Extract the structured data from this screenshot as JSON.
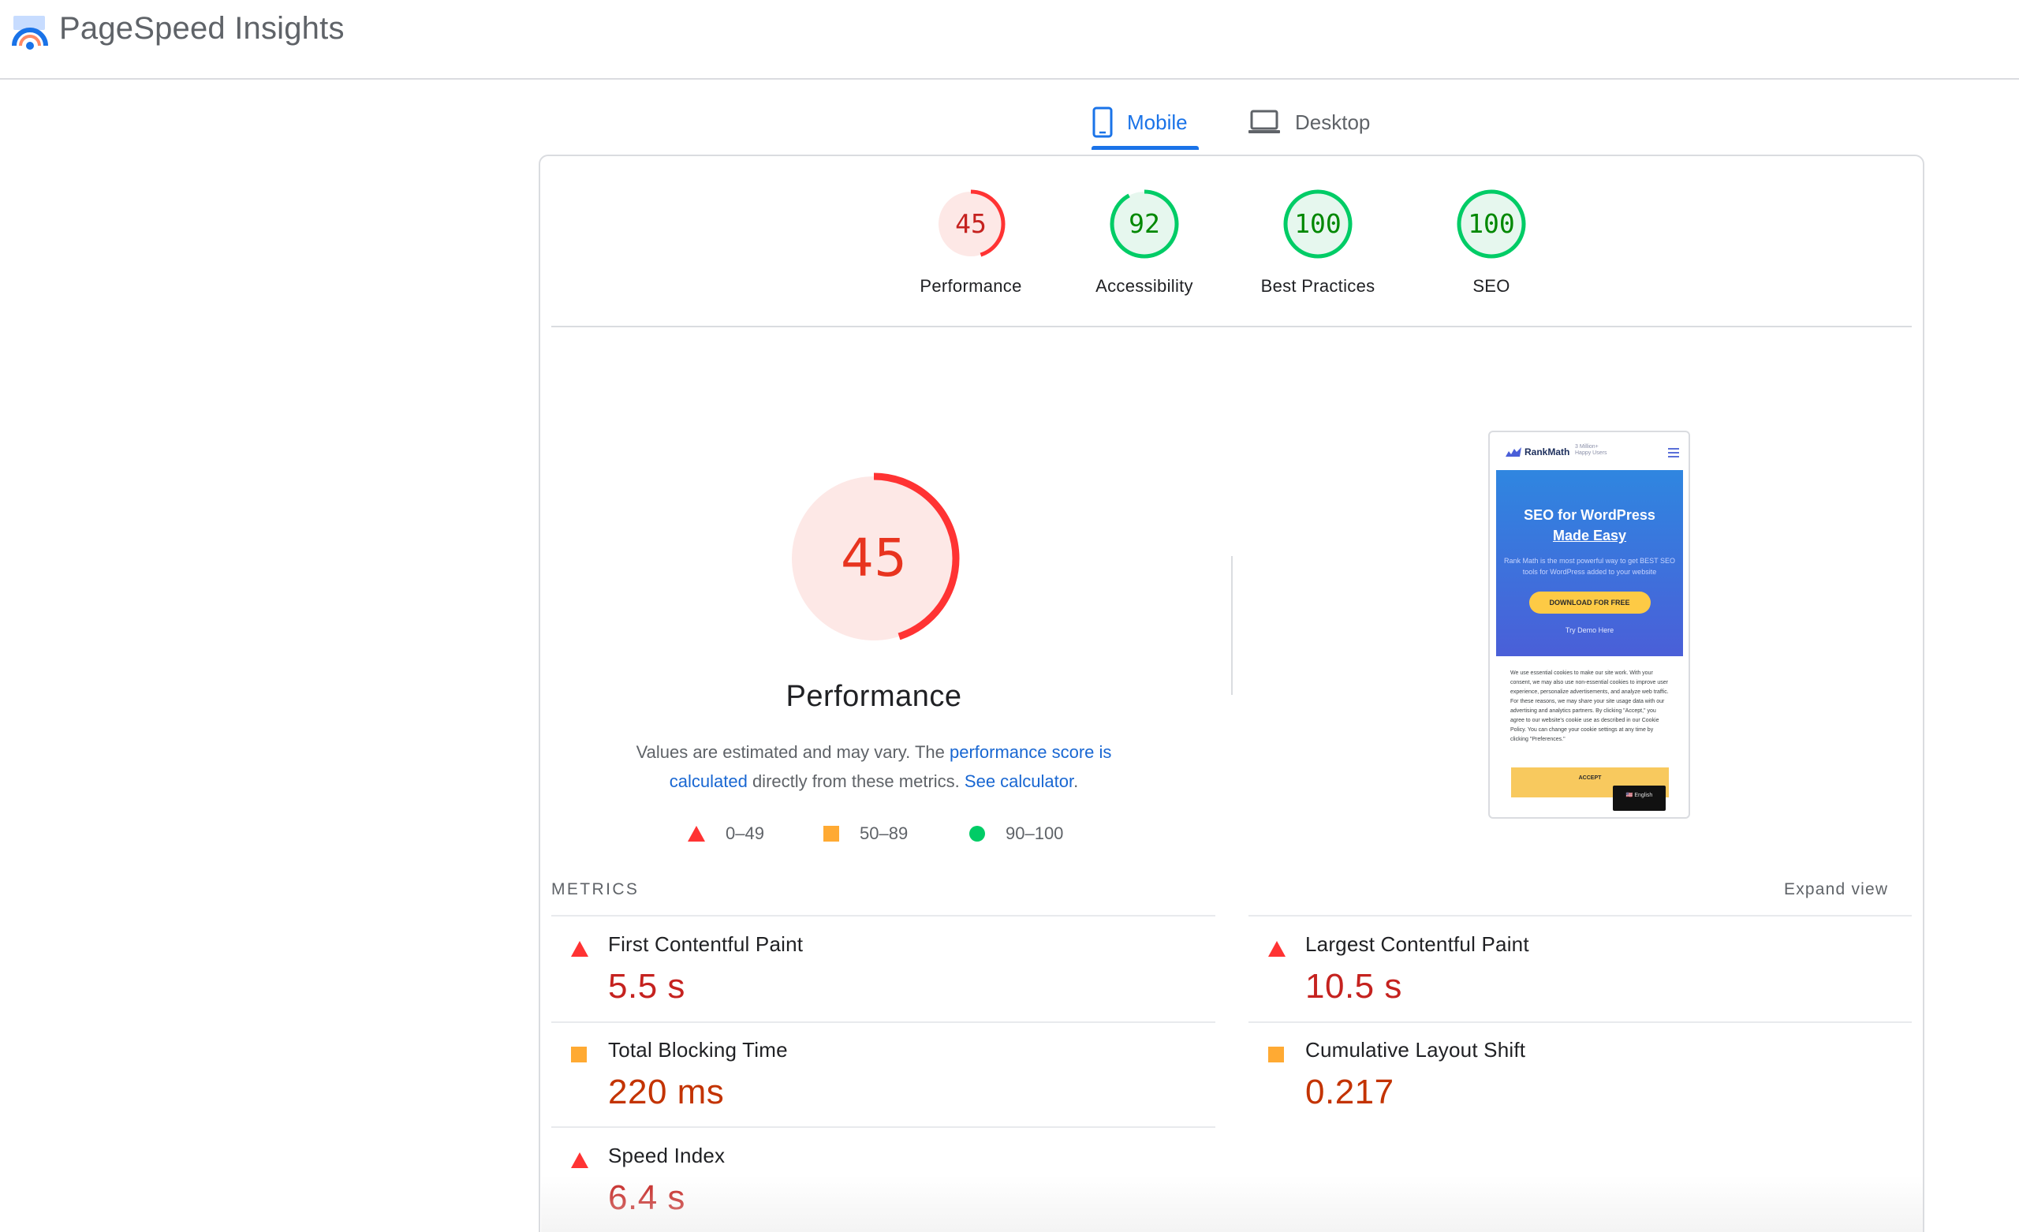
{
  "header": {
    "app_title": "PageSpeed Insights",
    "logo_icon": "pagespeed-logo-icon"
  },
  "tabs": [
    {
      "label": "Mobile",
      "icon": "phone-icon",
      "active": true
    },
    {
      "label": "Desktop",
      "icon": "laptop-icon",
      "active": false
    }
  ],
  "scores": [
    {
      "label": "Performance",
      "value": 45,
      "status": "fail"
    },
    {
      "label": "Accessibility",
      "value": 92,
      "status": "pass"
    },
    {
      "label": "Best Practices",
      "value": 100,
      "status": "pass"
    },
    {
      "label": "SEO",
      "value": 100,
      "status": "pass"
    }
  ],
  "performance": {
    "score": 45,
    "title": "Performance",
    "desc_part1": "Values are estimated and may vary. The ",
    "desc_link1": "performance score is calculated",
    "desc_part2": " directly from these metrics. ",
    "desc_link2": "See calculator",
    "desc_part3": "."
  },
  "legend": [
    {
      "shape": "triangle",
      "range": "0–49",
      "color": "#f33"
    },
    {
      "shape": "square",
      "range": "50–89",
      "color": "#fa3"
    },
    {
      "shape": "circle",
      "range": "90–100",
      "color": "#0c6"
    }
  ],
  "screenshot": {
    "brand": "RankMath",
    "brand_sub_line1": "3 Million+",
    "brand_sub_line2": "Happy Users",
    "hero_title_line1": "SEO for WordPress",
    "hero_title_line2": "Made Easy",
    "hero_desc": "Rank Math is the most powerful way to get BEST SEO tools for WordPress added to your website",
    "download_button": "DOWNLOAD FOR FREE",
    "demo_link": "Try Demo Here",
    "cookie_text": "We use essential cookies to make our site work. With your consent, we may also use non-essential cookies to improve user experience, personalize advertisements, and analyze web traffic. For these reasons, we may share your site usage data with our advertising and analytics partners. By clicking \"Accept,\" you agree to our website's cookie use as described in our Cookie Policy. You can change your cookie settings at any time by clicking \"Preferences.\"",
    "accept_button": "ACCEPT",
    "language": "🇺🇸 English"
  },
  "metrics": {
    "title": "METRICS",
    "expand_label": "Expand view",
    "items": [
      {
        "name": "First Contentful Paint",
        "value": "5.5 s",
        "status": "fail"
      },
      {
        "name": "Largest Contentful Paint",
        "value": "10.5 s",
        "status": "fail"
      },
      {
        "name": "Total Blocking Time",
        "value": "220 ms",
        "status": "average"
      },
      {
        "name": "Cumulative Layout Shift",
        "value": "0.217",
        "status": "average"
      },
      {
        "name": "Speed Index",
        "value": "6.4 s",
        "status": "fail"
      }
    ]
  },
  "colors": {
    "accent": "#1a73e8",
    "fail": "#ff3333",
    "average": "#ffaa33",
    "pass": "#00cc66",
    "fail_text": "#c5221f",
    "average_text": "#c33300",
    "pass_text": "#008800"
  }
}
